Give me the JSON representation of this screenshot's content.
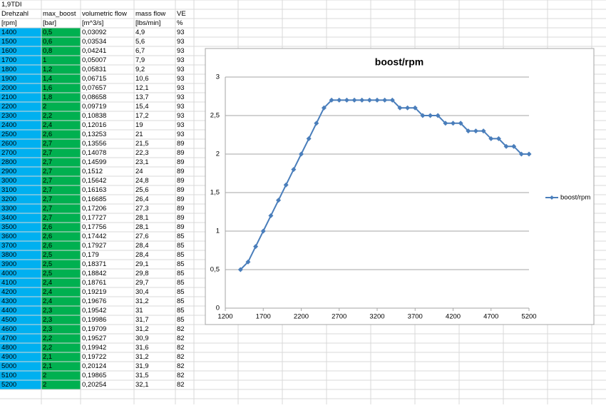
{
  "sheet": {
    "title": "1,9TDI",
    "headers": [
      "Drehzahl",
      "max_boost",
      "volumetric flow",
      "mass flow",
      "VE"
    ],
    "units": [
      "[rpm]",
      "[bar]",
      "[m^3/s]",
      "[lbs/min]",
      "%"
    ],
    "rows": [
      [
        "1400",
        "0,5",
        "0,03092",
        "4,9",
        "93"
      ],
      [
        "1500",
        "0,6",
        "0,03534",
        "5,6",
        "93"
      ],
      [
        "1600",
        "0,8",
        "0,04241",
        "6,7",
        "93"
      ],
      [
        "1700",
        "1",
        "0,05007",
        "7,9",
        "93"
      ],
      [
        "1800",
        "1,2",
        "0,05831",
        "9,2",
        "93"
      ],
      [
        "1900",
        "1,4",
        "0,06715",
        "10,6",
        "93"
      ],
      [
        "2000",
        "1,6",
        "0,07657",
        "12,1",
        "93"
      ],
      [
        "2100",
        "1,8",
        "0,08658",
        "13,7",
        "93"
      ],
      [
        "2200",
        "2",
        "0,09719",
        "15,4",
        "93"
      ],
      [
        "2300",
        "2,2",
        "0,10838",
        "17,2",
        "93"
      ],
      [
        "2400",
        "2,4",
        "0,12016",
        "19",
        "93"
      ],
      [
        "2500",
        "2,6",
        "0,13253",
        "21",
        "93"
      ],
      [
        "2600",
        "2,7",
        "0,13556",
        "21,5",
        "89"
      ],
      [
        "2700",
        "2,7",
        "0,14078",
        "22,3",
        "89"
      ],
      [
        "2800",
        "2,7",
        "0,14599",
        "23,1",
        "89"
      ],
      [
        "2900",
        "2,7",
        "0,1512",
        "24",
        "89"
      ],
      [
        "3000",
        "2,7",
        "0,15642",
        "24,8",
        "89"
      ],
      [
        "3100",
        "2,7",
        "0,16163",
        "25,6",
        "89"
      ],
      [
        "3200",
        "2,7",
        "0,16685",
        "26,4",
        "89"
      ],
      [
        "3300",
        "2,7",
        "0,17206",
        "27,3",
        "89"
      ],
      [
        "3400",
        "2,7",
        "0,17727",
        "28,1",
        "89"
      ],
      [
        "3500",
        "2,6",
        "0,17756",
        "28,1",
        "89"
      ],
      [
        "3600",
        "2,6",
        "0,17442",
        "27,6",
        "85"
      ],
      [
        "3700",
        "2,6",
        "0,17927",
        "28,4",
        "85"
      ],
      [
        "3800",
        "2,5",
        "0,179",
        "28,4",
        "85"
      ],
      [
        "3900",
        "2,5",
        "0,18371",
        "29,1",
        "85"
      ],
      [
        "4000",
        "2,5",
        "0,18842",
        "29,8",
        "85"
      ],
      [
        "4100",
        "2,4",
        "0,18761",
        "29,7",
        "85"
      ],
      [
        "4200",
        "2,4",
        "0,19219",
        "30,4",
        "85"
      ],
      [
        "4300",
        "2,4",
        "0,19676",
        "31,2",
        "85"
      ],
      [
        "4400",
        "2,3",
        "0,19542",
        "31",
        "85"
      ],
      [
        "4500",
        "2,3",
        "0,19986",
        "31,7",
        "85"
      ],
      [
        "4600",
        "2,3",
        "0,19709",
        "31,2",
        "82"
      ],
      [
        "4700",
        "2,2",
        "0,19527",
        "30,9",
        "82"
      ],
      [
        "4800",
        "2,2",
        "0,19942",
        "31,6",
        "82"
      ],
      [
        "4900",
        "2,1",
        "0,19722",
        "31,2",
        "82"
      ],
      [
        "5000",
        "2,1",
        "0,20124",
        "31,9",
        "82"
      ],
      [
        "5100",
        "2",
        "0,19865",
        "31,5",
        "82"
      ],
      [
        "5200",
        "2",
        "0,20254",
        "32,1",
        "82"
      ]
    ]
  },
  "chart_data": {
    "type": "line",
    "title": "boost/rpm",
    "x": [
      1400,
      1500,
      1600,
      1700,
      1800,
      1900,
      2000,
      2100,
      2200,
      2300,
      2400,
      2500,
      2600,
      2700,
      2800,
      2900,
      3000,
      3100,
      3200,
      3300,
      3400,
      3500,
      3600,
      3700,
      3800,
      3900,
      4000,
      4100,
      4200,
      4300,
      4400,
      4500,
      4600,
      4700,
      4800,
      4900,
      5000,
      5100,
      5200
    ],
    "series": [
      {
        "name": "boost/rpm",
        "color": "#4a7ebb",
        "values": [
          0.5,
          0.6,
          0.8,
          1,
          1.2,
          1.4,
          1.6,
          1.8,
          2,
          2.2,
          2.4,
          2.6,
          2.7,
          2.7,
          2.7,
          2.7,
          2.7,
          2.7,
          2.7,
          2.7,
          2.7,
          2.6,
          2.6,
          2.6,
          2.5,
          2.5,
          2.5,
          2.4,
          2.4,
          2.4,
          2.3,
          2.3,
          2.3,
          2.2,
          2.2,
          2.1,
          2.1,
          2,
          2
        ]
      }
    ],
    "xlim": [
      1200,
      5200
    ],
    "xticks": [
      1200,
      1700,
      2200,
      2700,
      3200,
      3700,
      4200,
      4700,
      5200
    ],
    "ylim": [
      0,
      3
    ],
    "yticks": [
      0,
      {
        "value": 0.5,
        "label": "0,5"
      },
      1,
      {
        "value": 1.5,
        "label": "1,5"
      },
      2,
      {
        "value": 2.5,
        "label": "2,5"
      },
      3
    ],
    "grid": true,
    "legend": "right"
  }
}
